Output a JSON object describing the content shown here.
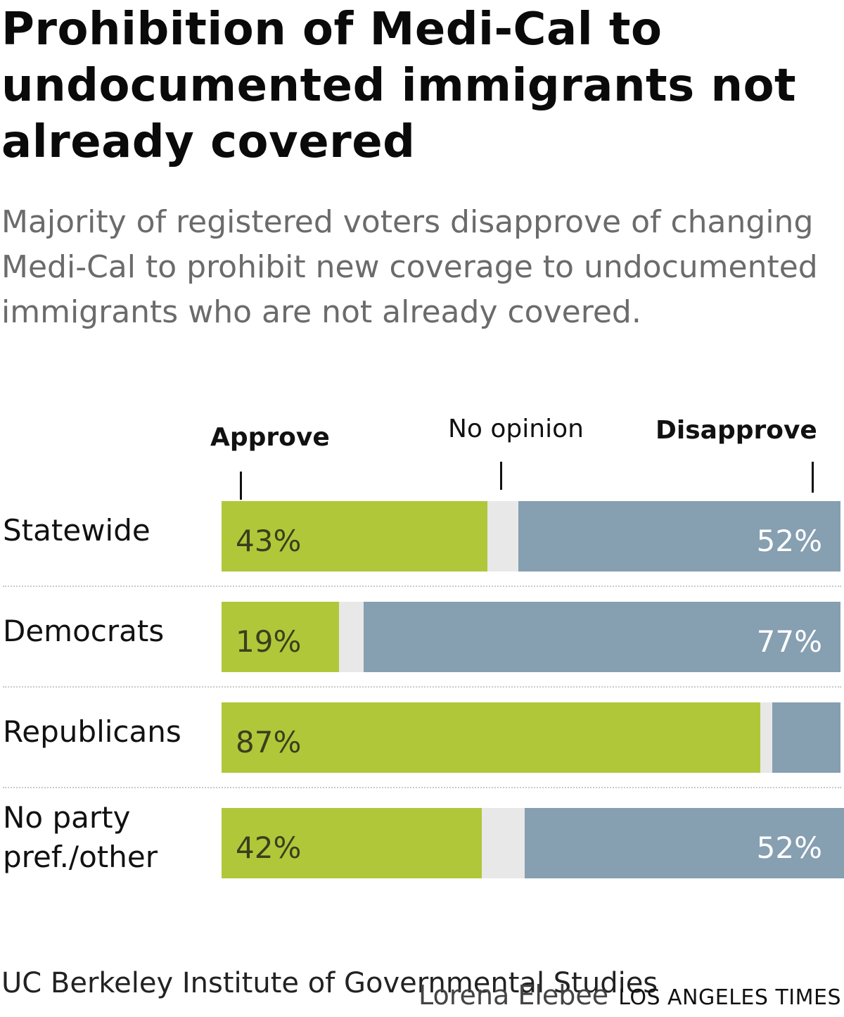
{
  "title": "Prohibition of Medi-Cal to undocumented immigrants not already covered",
  "subtitle": "Majority of registered voters disapprove of changing Medi-Cal to prohibit new coverage to undocumented immigrants who are not already covered.",
  "source": "UC Berkeley Institute of Governmental Studies",
  "credit": {
    "author": "Lorena Elebee",
    "publication": "LOS ANGELES TIMES"
  },
  "colors": {
    "approve": "#b0c73a",
    "no_opinion": "#e8e8e8",
    "disapprove": "#869fb1"
  },
  "chart_data": {
    "type": "bar",
    "orientation": "horizontal",
    "stacked": true,
    "legend": {
      "approve": "Approve",
      "no_opinion": "No opinion",
      "disapprove": "Disapprove"
    },
    "categories": [
      "Statewide",
      "Democrats",
      "Republicans",
      "No party pref./other"
    ],
    "category_lines": [
      [
        "Statewide"
      ],
      [
        "Democrats"
      ],
      [
        "Republicans"
      ],
      [
        "No party",
        "pref./other"
      ]
    ],
    "series": [
      {
        "name": "Approve",
        "values": [
          43,
          19,
          87,
          42
        ]
      },
      {
        "name": "No opinion",
        "values": [
          5,
          4,
          2,
          7
        ]
      },
      {
        "name": "Disapprove",
        "values": [
          52,
          77,
          11,
          52
        ]
      }
    ],
    "approve_labels": [
      "43%",
      "19%",
      "87%",
      "42%"
    ],
    "disapprove_labels": [
      "52%",
      "77%",
      "",
      "52%"
    ],
    "unit": "%",
    "xlim": [
      0,
      100
    ]
  }
}
